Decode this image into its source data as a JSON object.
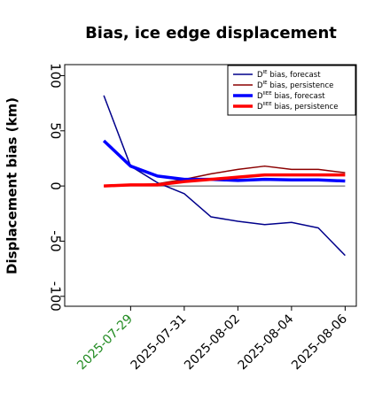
{
  "chart_data": {
    "type": "line",
    "title": "Bias, ice edge displacement",
    "y_label": "Displacement bias (km)",
    "x": [
      "2025-07-28",
      "2025-07-29",
      "2025-07-30",
      "2025-07-31",
      "2025-08-01",
      "2025-08-02",
      "2025-08-03",
      "2025-08-04",
      "2025-08-05",
      "2025-08-06"
    ],
    "xlim": [
      "2025-07-26T13:00",
      "2025-08-06T10:00"
    ],
    "xticks": [
      "2025-07-29",
      "2025-07-31",
      "2025-08-02",
      "2025-08-04",
      "2025-08-06"
    ],
    "xtick_label_colors": [
      "#228b22",
      "#000000",
      "#000000",
      "#000000",
      "#000000"
    ],
    "ylim": [
      -109,
      110
    ],
    "yticks": [
      -100,
      -50,
      0,
      50,
      100
    ],
    "reference_line": 0,
    "legend": "upper right",
    "series": [
      {
        "name": [
          "D",
          "IE",
          " bias, forecast"
        ],
        "color": "#00008b",
        "width": 1.5,
        "values": [
          82,
          18,
          3,
          -7,
          -28,
          -32,
          -35,
          -33,
          -38,
          -63
        ]
      },
      {
        "name": [
          "D",
          "IE",
          " bias, persistence"
        ],
        "color": "#8b0000",
        "width": 1.5,
        "values": [
          0,
          1,
          2,
          6,
          11,
          15,
          18,
          15,
          15,
          12
        ]
      },
      {
        "name": [
          "D",
          "IIEE",
          " bias, forecast"
        ],
        "color": "#0000ff",
        "width": 3.5,
        "values": [
          41,
          18,
          9,
          6,
          6,
          5,
          6,
          5.5,
          5.5,
          4.5
        ]
      },
      {
        "name": [
          "D",
          "IIEE",
          " bias, persistence"
        ],
        "color": "#ff0000",
        "width": 3.5,
        "values": [
          0,
          1,
          1,
          4,
          6,
          8,
          10,
          10,
          10,
          10
        ]
      }
    ]
  }
}
